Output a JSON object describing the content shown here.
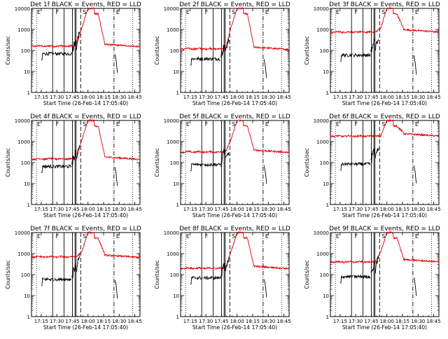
{
  "figure": {
    "panels": [
      {
        "title": "Det 1f  BLACK = Events, RED = LLD"
      },
      {
        "title": "Det 2f  BLACK = Events, RED = LLD"
      },
      {
        "title": "Det 3f  BLACK = Events, RED = LLD"
      },
      {
        "title": "Det 4f  BLACK = Events, RED = LLD"
      },
      {
        "title": "Det 5f  BLACK = Events, RED = LLD"
      },
      {
        "title": "Det 6f  BLACK = Events, RED = LLD"
      },
      {
        "title": "Det 7f  BLACK = Events, RED = LLD"
      },
      {
        "title": "Det 8f  BLACK = Events, RED = LLD"
      },
      {
        "title": "Det 9f  BLACK = Events, RED = LLD"
      }
    ],
    "xlabel": "Start Time (26-Feb-14 17:05:40)",
    "ylabel": "Counts/sec",
    "colors": {
      "events": "#000000",
      "lld": "#e00000"
    }
  },
  "chart_data": {
    "type": "line",
    "x_ticks": [
      "17:15",
      "17:30",
      "17:45",
      "18:00",
      "18:15",
      "18:30",
      "18:45"
    ],
    "x_tick_minutes": [
      15,
      30,
      45,
      60,
      75,
      90,
      105
    ],
    "xlim_minutes_after_1700": [
      5.67,
      110
    ],
    "y_scale": "log",
    "ylim": [
      1,
      10000
    ],
    "y_ticks": [
      "1",
      "10",
      "100",
      "1000",
      "10000"
    ],
    "y_tick_values": [
      1,
      10,
      100,
      1000,
      10000
    ],
    "marker_letters": [
      "E",
      "F",
      "S",
      "E"
    ],
    "series_meaning": {
      "black": "Events",
      "red": "LLD"
    },
    "panels": [
      {
        "det": "1f",
        "lld_baseline": 160,
        "lld_peak": 10000,
        "events_baseline": 70,
        "events_peak": 900,
        "lld_end": 150
      },
      {
        "det": "2f",
        "lld_baseline": 120,
        "lld_peak": 10000,
        "events_baseline": 40,
        "events_peak": 300,
        "lld_end": 110
      },
      {
        "det": "3f",
        "lld_baseline": 750,
        "lld_peak": 10000,
        "events_baseline": 60,
        "events_peak": 400,
        "lld_end": 750
      },
      {
        "det": "4f",
        "lld_baseline": 150,
        "lld_peak": 10000,
        "events_baseline": 65,
        "events_peak": 800,
        "lld_end": 140
      },
      {
        "det": "5f",
        "lld_baseline": 320,
        "lld_peak": 10000,
        "events_baseline": 80,
        "events_peak": 300,
        "lld_end": 300
      },
      {
        "det": "6f",
        "lld_baseline": 1800,
        "lld_peak": 10000,
        "events_baseline": 85,
        "events_peak": 400,
        "lld_end": 1800
      },
      {
        "det": "7f",
        "lld_baseline": 700,
        "lld_peak": 10000,
        "events_baseline": 60,
        "events_peak": 900,
        "lld_end": 650
      },
      {
        "det": "8f",
        "lld_baseline": 200,
        "lld_peak": 10000,
        "events_baseline": 70,
        "events_peak": 600,
        "lld_end": 190
      },
      {
        "det": "9f",
        "lld_baseline": 400,
        "lld_peak": 10000,
        "events_baseline": 80,
        "events_peak": 700,
        "lld_end": 400
      }
    ]
  }
}
